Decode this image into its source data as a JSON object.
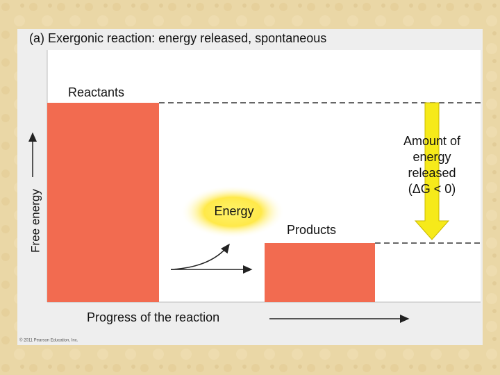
{
  "header": {
    "title": "(a) Exergonic reaction: energy released, spontaneous"
  },
  "labels": {
    "reactants": "Reactants",
    "products": "Products",
    "energy": "Energy",
    "y_axis": "Free energy",
    "x_axis": "Progress of the reaction",
    "released": [
      "Amount of",
      "energy",
      "released",
      "(ΔG < 0)"
    ]
  },
  "footer": {
    "copyright": "© 2011 Pearson Education, Inc."
  }
}
